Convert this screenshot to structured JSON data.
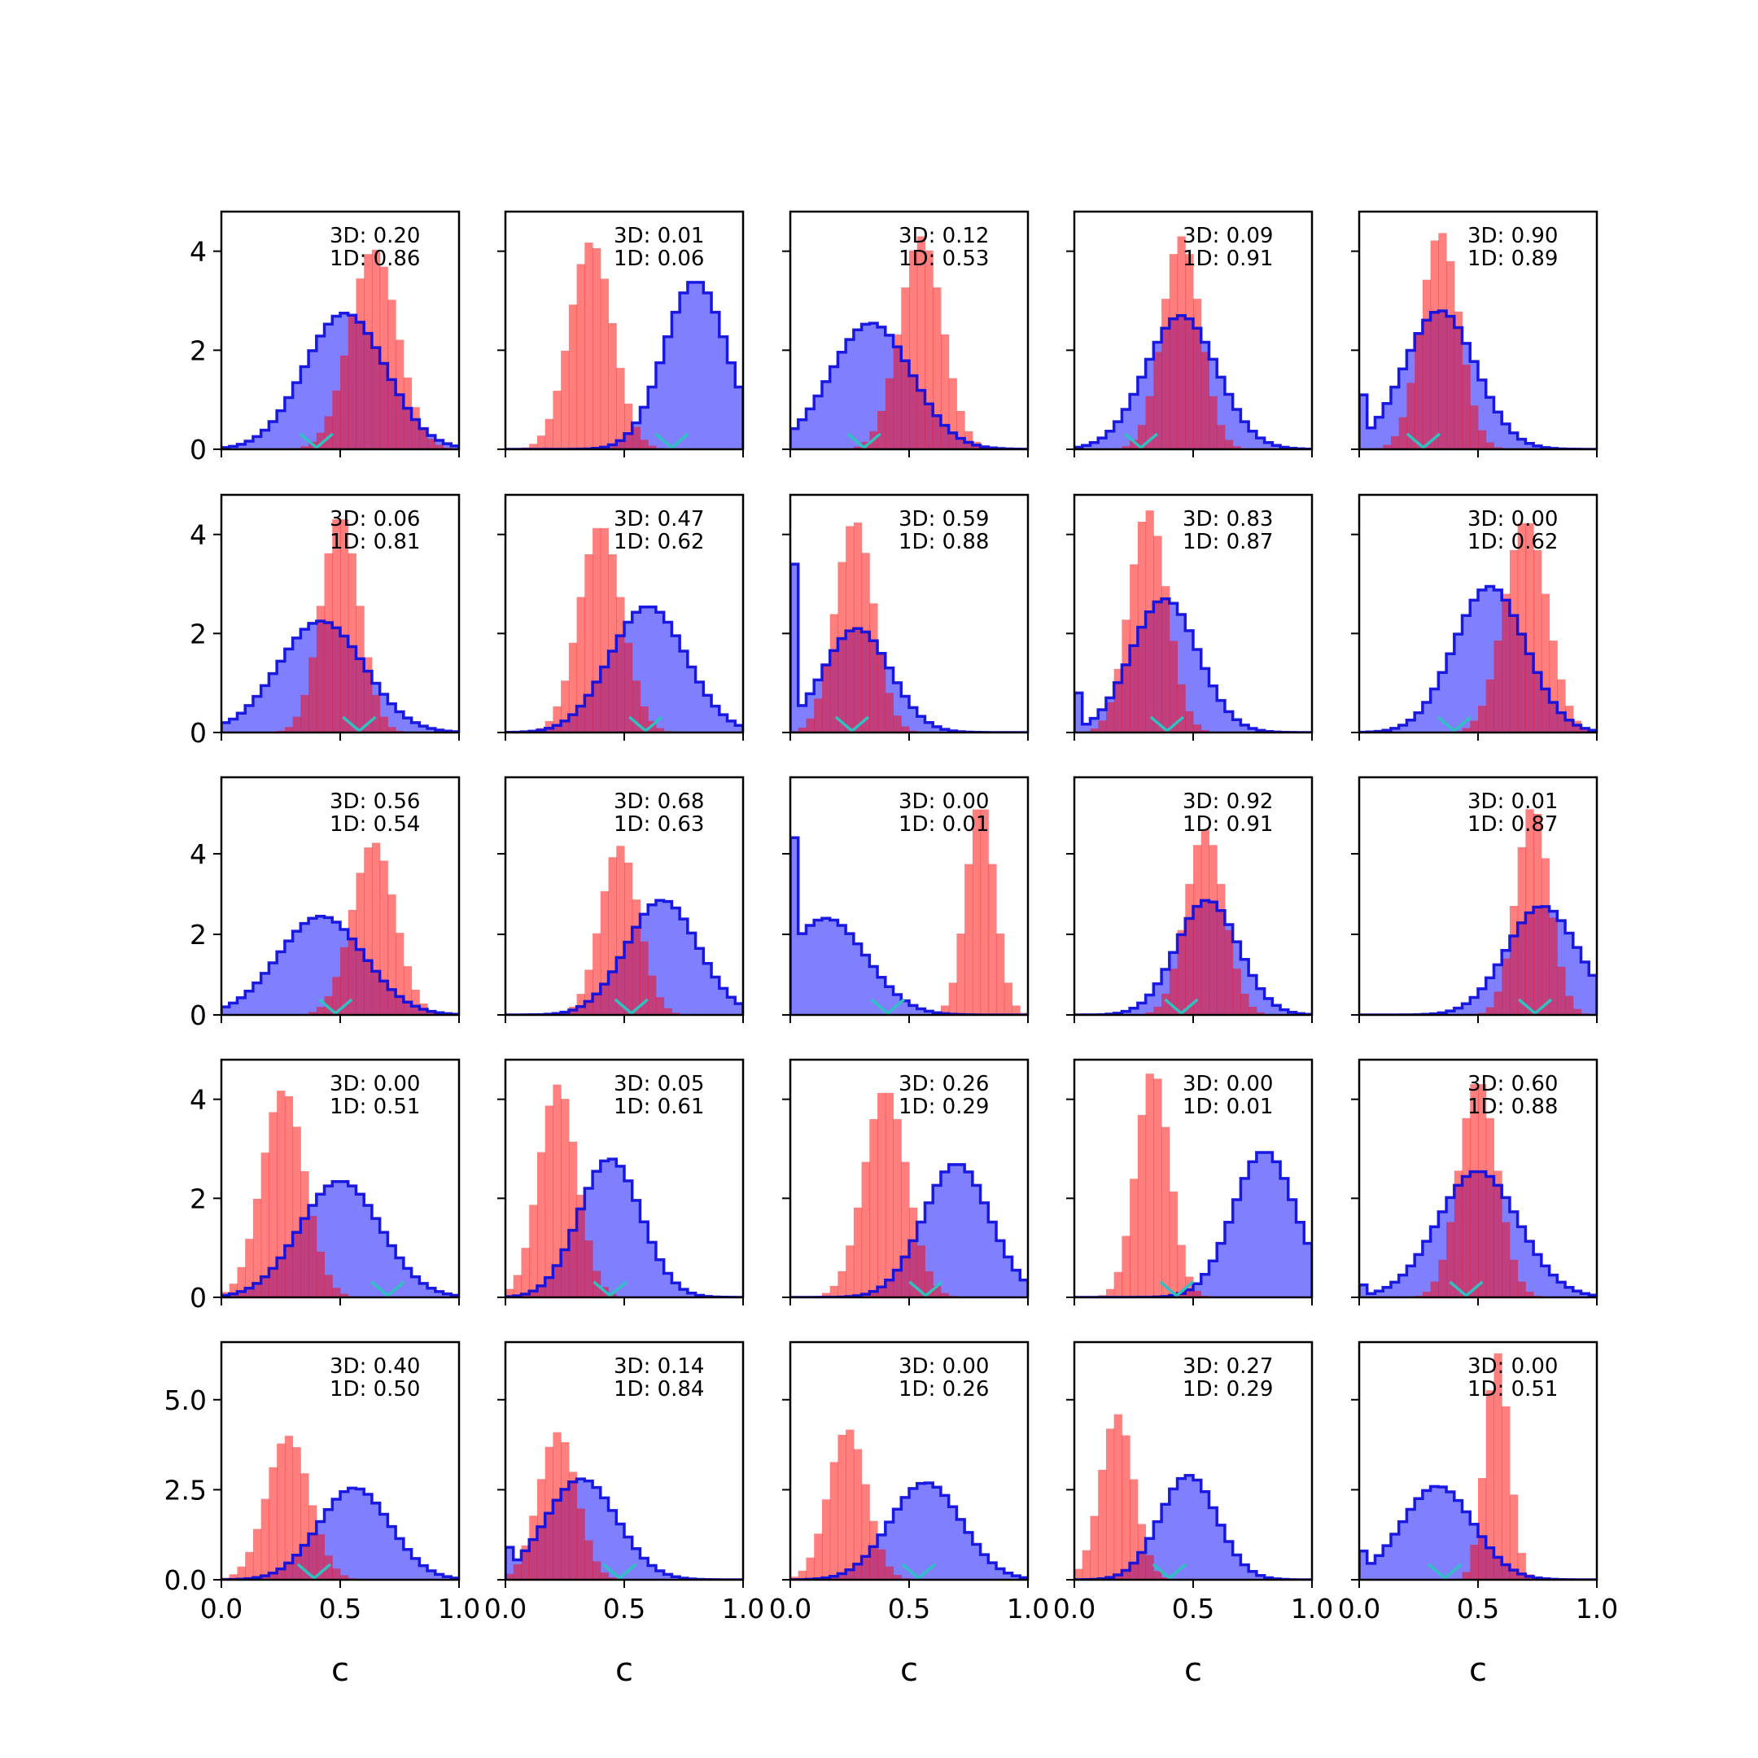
{
  "chart_data": {
    "type": "histogram-grid",
    "rows": 5,
    "cols": 5,
    "xlabel": "c",
    "xlim": [
      0,
      1
    ],
    "xticks": [
      0.0,
      0.5,
      1.0
    ],
    "xtick_labels": [
      "0.0",
      "0.5",
      "1.0"
    ],
    "row_ylim": [
      [
        0,
        4.8
      ],
      [
        0,
        4.8
      ],
      [
        0,
        5.9
      ],
      [
        0,
        4.8
      ],
      [
        0,
        6.6
      ]
    ],
    "row_yticks": [
      [
        0,
        2,
        4
      ],
      [
        0,
        2,
        4
      ],
      [
        0,
        2,
        4
      ],
      [
        0,
        2,
        4
      ],
      [
        0.0,
        2.5,
        5.0
      ]
    ],
    "row_ytick_labels": [
      [
        "0",
        "2",
        "4"
      ],
      [
        "0",
        "2",
        "4"
      ],
      [
        "0",
        "2",
        "4"
      ],
      [
        "0",
        "2",
        "4"
      ],
      [
        "0.0",
        "2.5",
        "5.0"
      ]
    ],
    "colors": {
      "red_fill": "#ff8080",
      "blue_fill": "#8080ff",
      "blue_edge": "#1010e0",
      "overlap_edge": "#700070",
      "marker": "#30c0c0"
    },
    "panels": [
      {
        "row": 0,
        "col": 0,
        "label_3d": "3D: 0.20",
        "label_1d": "1D: 0.86",
        "blue": {
          "mu": 0.52,
          "sd": 0.17,
          "peak": 2.75,
          "left_edge": 0
        },
        "red": {
          "mu": 0.64,
          "sd": 0.1,
          "peak": 4.05
        },
        "marker": 0.4
      },
      {
        "row": 0,
        "col": 1,
        "label_3d": "3D: 0.01",
        "label_1d": "1D: 0.06",
        "blue": {
          "mu": 0.8,
          "sd": 0.13,
          "peak": 3.4,
          "left_edge": 0
        },
        "red": {
          "mu": 0.36,
          "sd": 0.09,
          "peak": 4.2
        },
        "marker": 0.7
      },
      {
        "row": 0,
        "col": 2,
        "label_3d": "3D: 0.12",
        "label_1d": "1D: 0.53",
        "blue": {
          "mu": 0.34,
          "sd": 0.17,
          "peak": 2.55,
          "left_edge": 0
        },
        "red": {
          "mu": 0.55,
          "sd": 0.09,
          "peak": 4.3
        },
        "marker": 0.31
      },
      {
        "row": 0,
        "col": 3,
        "label_3d": "3D: 0.09",
        "label_1d": "1D: 0.91",
        "blue": {
          "mu": 0.45,
          "sd": 0.15,
          "peak": 2.7,
          "left_edge": 0
        },
        "red": {
          "mu": 0.45,
          "sd": 0.08,
          "peak": 4.3
        },
        "marker": 0.28
      },
      {
        "row": 0,
        "col": 4,
        "label_3d": "3D: 0.90",
        "label_1d": "1D: 0.89",
        "blue": {
          "mu": 0.34,
          "sd": 0.15,
          "peak": 2.8,
          "left_edge": 1.1
        },
        "red": {
          "mu": 0.34,
          "sd": 0.08,
          "peak": 4.4
        },
        "marker": 0.27
      },
      {
        "row": 1,
        "col": 0,
        "label_3d": "3D: 0.06",
        "label_1d": "1D: 0.81",
        "blue": {
          "mu": 0.42,
          "sd": 0.18,
          "peak": 2.25,
          "left_edge": 0.2
        },
        "red": {
          "mu": 0.5,
          "sd": 0.08,
          "peak": 4.4
        },
        "marker": 0.58
      },
      {
        "row": 1,
        "col": 1,
        "label_3d": "3D: 0.47",
        "label_1d": "1D: 0.62",
        "blue": {
          "mu": 0.6,
          "sd": 0.16,
          "peak": 2.55,
          "left_edge": 0
        },
        "red": {
          "mu": 0.4,
          "sd": 0.09,
          "peak": 4.2
        },
        "marker": 0.59
      },
      {
        "row": 1,
        "col": 2,
        "label_3d": "3D: 0.59",
        "label_1d": "1D: 0.88",
        "blue": {
          "mu": 0.28,
          "sd": 0.14,
          "peak": 2.1,
          "left_edge": 3.4
        },
        "red": {
          "mu": 0.27,
          "sd": 0.08,
          "peak": 4.3
        },
        "marker": 0.26
      },
      {
        "row": 1,
        "col": 3,
        "label_3d": "3D: 0.83",
        "label_1d": "1D: 0.87",
        "blue": {
          "mu": 0.38,
          "sd": 0.14,
          "peak": 2.7,
          "left_edge": 0.8
        },
        "red": {
          "mu": 0.31,
          "sd": 0.08,
          "peak": 4.5
        },
        "marker": 0.39
      },
      {
        "row": 1,
        "col": 4,
        "label_3d": "3D: 0.00",
        "label_1d": "1D: 0.62",
        "blue": {
          "mu": 0.55,
          "sd": 0.15,
          "peak": 2.95,
          "left_edge": 0
        },
        "red": {
          "mu": 0.7,
          "sd": 0.09,
          "peak": 4.3
        },
        "marker": 0.4
      },
      {
        "row": 2,
        "col": 0,
        "label_3d": "3D: 0.56",
        "label_1d": "1D: 0.54",
        "blue": {
          "mu": 0.42,
          "sd": 0.18,
          "peak": 2.45,
          "left_edge": 0.2
        },
        "red": {
          "mu": 0.64,
          "sd": 0.09,
          "peak": 4.3
        },
        "marker": 0.48
      },
      {
        "row": 2,
        "col": 1,
        "label_3d": "3D: 0.68",
        "label_1d": "1D: 0.63",
        "blue": {
          "mu": 0.66,
          "sd": 0.15,
          "peak": 2.85,
          "left_edge": 0
        },
        "red": {
          "mu": 0.48,
          "sd": 0.08,
          "peak": 4.2
        },
        "marker": 0.53
      },
      {
        "row": 2,
        "col": 2,
        "label_3d": "3D: 0.00",
        "label_1d": "1D: 0.01",
        "blue": {
          "mu": 0.15,
          "sd": 0.17,
          "peak": 2.4,
          "left_edge": 4.4
        },
        "red": {
          "mu": 0.8,
          "sd": 0.06,
          "peak": 5.3
        },
        "marker": 0.41
      },
      {
        "row": 2,
        "col": 3,
        "label_3d": "3D: 0.92",
        "label_1d": "1D: 0.91",
        "blue": {
          "mu": 0.56,
          "sd": 0.13,
          "peak": 2.85,
          "left_edge": 0
        },
        "red": {
          "mu": 0.55,
          "sd": 0.08,
          "peak": 4.6
        },
        "marker": 0.45
      },
      {
        "row": 2,
        "col": 4,
        "label_3d": "3D: 0.01",
        "label_1d": "1D: 0.87",
        "blue": {
          "mu": 0.77,
          "sd": 0.15,
          "peak": 2.7,
          "left_edge": 0
        },
        "red": {
          "mu": 0.73,
          "sd": 0.07,
          "peak": 5.2
        },
        "marker": 0.74
      },
      {
        "row": 3,
        "col": 0,
        "label_3d": "3D: 0.00",
        "label_1d": "1D: 0.51",
        "blue": {
          "mu": 0.5,
          "sd": 0.17,
          "peak": 2.35,
          "left_edge": 0
        },
        "red": {
          "mu": 0.26,
          "sd": 0.09,
          "peak": 4.2
        },
        "marker": 0.7
      },
      {
        "row": 3,
        "col": 1,
        "label_3d": "3D: 0.05",
        "label_1d": "1D: 0.61",
        "blue": {
          "mu": 0.44,
          "sd": 0.13,
          "peak": 2.8,
          "left_edge": 0
        },
        "red": {
          "mu": 0.22,
          "sd": 0.08,
          "peak": 4.3
        },
        "marker": 0.44
      },
      {
        "row": 3,
        "col": 2,
        "label_3d": "3D: 0.26",
        "label_1d": "1D: 0.29",
        "blue": {
          "mu": 0.7,
          "sd": 0.14,
          "peak": 2.7,
          "left_edge": 0
        },
        "red": {
          "mu": 0.4,
          "sd": 0.09,
          "peak": 4.2
        },
        "marker": 0.57
      },
      {
        "row": 3,
        "col": 3,
        "label_3d": "3D: 0.00",
        "label_1d": "1D: 0.01",
        "blue": {
          "mu": 0.8,
          "sd": 0.13,
          "peak": 2.95,
          "left_edge": 0
        },
        "red": {
          "mu": 0.33,
          "sd": 0.07,
          "peak": 4.6
        },
        "marker": 0.43
      },
      {
        "row": 3,
        "col": 4,
        "label_3d": "3D: 0.60",
        "label_1d": "1D: 0.88",
        "blue": {
          "mu": 0.5,
          "sd": 0.17,
          "peak": 2.55,
          "left_edge": 0.25
        },
        "red": {
          "mu": 0.5,
          "sd": 0.08,
          "peak": 4.4
        },
        "marker": 0.45
      },
      {
        "row": 4,
        "col": 0,
        "label_3d": "3D: 0.40",
        "label_1d": "1D: 0.50",
        "blue": {
          "mu": 0.56,
          "sd": 0.15,
          "peak": 2.55,
          "left_edge": 0
        },
        "red": {
          "mu": 0.28,
          "sd": 0.09,
          "peak": 4.0
        },
        "marker": 0.39
      },
      {
        "row": 4,
        "col": 1,
        "label_3d": "3D: 0.14",
        "label_1d": "1D: 0.84",
        "blue": {
          "mu": 0.32,
          "sd": 0.15,
          "peak": 2.8,
          "left_edge": 0.9
        },
        "red": {
          "mu": 0.22,
          "sd": 0.08,
          "peak": 4.1
        },
        "marker": 0.48
      },
      {
        "row": 4,
        "col": 2,
        "label_3d": "3D: 0.00",
        "label_1d": "1D: 0.26",
        "blue": {
          "mu": 0.57,
          "sd": 0.15,
          "peak": 2.7,
          "left_edge": 0
        },
        "red": {
          "mu": 0.24,
          "sd": 0.08,
          "peak": 4.2
        },
        "marker": 0.54
      },
      {
        "row": 4,
        "col": 3,
        "label_3d": "3D: 0.27",
        "label_1d": "1D: 0.29",
        "blue": {
          "mu": 0.48,
          "sd": 0.12,
          "peak": 2.9,
          "left_edge": 0
        },
        "red": {
          "mu": 0.18,
          "sd": 0.07,
          "peak": 4.6
        },
        "marker": 0.4
      },
      {
        "row": 4,
        "col": 4,
        "label_3d": "3D: 0.00",
        "label_1d": "1D: 0.51",
        "blue": {
          "mu": 0.33,
          "sd": 0.15,
          "peak": 2.6,
          "left_edge": 0.8
        },
        "red": {
          "mu": 0.58,
          "sd": 0.05,
          "peak": 6.3
        },
        "marker": 0.36
      }
    ]
  }
}
